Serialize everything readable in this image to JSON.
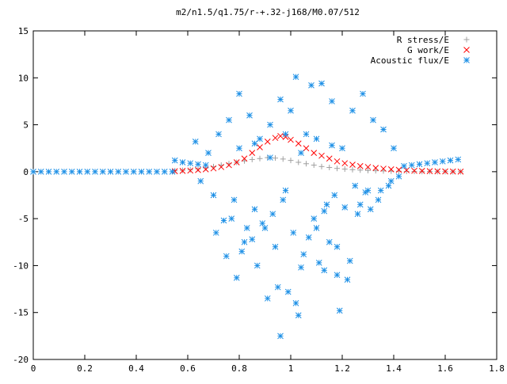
{
  "chart_data": {
    "type": "scatter",
    "title": "m2/n1.5/q1.75/r-+.32-j168/M0.07/512",
    "xlabel": "",
    "ylabel": "",
    "xlim": [
      0,
      1.8
    ],
    "ylim": [
      -20,
      15
    ],
    "x_ticks": [
      0,
      0.2,
      0.4,
      0.6,
      0.8,
      1,
      1.2,
      1.4,
      1.6,
      1.8
    ],
    "x_tick_labels": [
      "0",
      "0.2",
      "0.4",
      "0.6",
      "0.8",
      "1",
      "1.2",
      "1.4",
      "1.6",
      "1.8"
    ],
    "y_ticks": [
      -20,
      -15,
      -10,
      -5,
      0,
      5,
      10,
      15
    ],
    "y_tick_labels": [
      "-20",
      "-15",
      "-10",
      "-5",
      "0",
      "5",
      "10",
      "15"
    ],
    "grid": false,
    "legend_position": "top-right",
    "series": [
      {
        "name": "R stress/E",
        "marker": "plus",
        "color": "#a0a0a0",
        "x": [
          0.55,
          0.58,
          0.61,
          0.64,
          0.67,
          0.7,
          0.73,
          0.76,
          0.79,
          0.82,
          0.85,
          0.88,
          0.91,
          0.94,
          0.97,
          1.0,
          1.03,
          1.06,
          1.09,
          1.12,
          1.15,
          1.18,
          1.21,
          1.24,
          1.27,
          1.3,
          1.33,
          1.36,
          1.39,
          1.42,
          1.45,
          1.48,
          1.51,
          1.54,
          1.57,
          1.6,
          1.63,
          1.66
        ],
        "y": [
          0.1,
          0.15,
          0.2,
          0.3,
          0.4,
          0.55,
          0.7,
          0.85,
          1.0,
          1.15,
          1.3,
          1.4,
          1.5,
          1.45,
          1.35,
          1.2,
          1.0,
          0.85,
          0.7,
          0.55,
          0.45,
          0.35,
          0.28,
          0.22,
          0.17,
          0.13,
          0.1,
          0.08,
          0.06,
          0.05,
          0.04,
          0.03,
          0.02,
          0.02,
          0.01,
          0.01,
          0.0,
          0.0
        ]
      },
      {
        "name": "G work/E",
        "marker": "cross",
        "color": "#ff0000",
        "x": [
          0.55,
          0.58,
          0.61,
          0.64,
          0.67,
          0.7,
          0.73,
          0.76,
          0.79,
          0.82,
          0.85,
          0.88,
          0.91,
          0.94,
          0.96,
          0.98,
          1.0,
          1.03,
          1.06,
          1.09,
          1.12,
          1.15,
          1.18,
          1.21,
          1.24,
          1.27,
          1.3,
          1.33,
          1.36,
          1.39,
          1.42,
          1.45,
          1.48,
          1.51,
          1.54,
          1.57,
          1.6,
          1.63,
          1.66
        ],
        "y": [
          0.05,
          0.08,
          0.12,
          0.18,
          0.25,
          0.35,
          0.5,
          0.7,
          1.0,
          1.4,
          2.0,
          2.6,
          3.2,
          3.6,
          3.8,
          3.7,
          3.4,
          3.0,
          2.5,
          2.0,
          1.7,
          1.4,
          1.1,
          0.9,
          0.75,
          0.6,
          0.5,
          0.4,
          0.32,
          0.25,
          0.2,
          0.15,
          0.1,
          0.08,
          0.06,
          0.04,
          0.03,
          0.02,
          0.01
        ]
      },
      {
        "name": "Acoustic flux/E",
        "marker": "star",
        "color": "#1e90e6",
        "x": [
          0.0,
          0.03,
          0.06,
          0.09,
          0.12,
          0.15,
          0.18,
          0.21,
          0.24,
          0.27,
          0.3,
          0.33,
          0.36,
          0.39,
          0.42,
          0.45,
          0.48,
          0.51,
          0.54,
          0.55,
          0.58,
          0.61,
          0.64,
          0.67,
          1.44,
          1.47,
          1.5,
          1.53,
          1.56,
          1.59,
          1.62,
          1.65,
          0.63,
          0.65,
          0.68,
          0.7,
          0.72,
          0.74,
          0.76,
          0.78,
          0.8,
          0.82,
          0.84,
          0.86,
          0.88,
          0.9,
          0.92,
          0.94,
          0.96,
          0.98,
          1.0,
          1.02,
          1.04,
          1.06,
          1.08,
          1.1,
          1.12,
          1.14,
          1.16,
          1.18,
          1.2,
          1.22,
          1.24,
          1.26,
          1.28,
          1.3,
          1.32,
          1.34,
          1.36,
          1.38,
          1.4,
          1.42,
          0.71,
          0.75,
          0.79,
          0.83,
          0.87,
          0.91,
          0.95,
          0.99,
          1.03,
          1.07,
          1.11,
          1.15,
          1.19,
          1.23,
          1.27,
          1.31,
          1.35,
          1.39,
          0.77,
          0.81,
          0.85,
          0.89,
          0.93,
          0.97,
          1.01,
          1.05,
          1.09,
          1.13,
          1.17,
          1.21,
          1.25,
          1.29,
          0.8,
          0.86,
          0.92,
          0.98,
          1.04,
          1.1,
          1.16,
          0.96,
          1.02,
          1.13,
          1.18
        ],
        "y": [
          0.0,
          0.0,
          0.0,
          0.0,
          0.0,
          0.0,
          0.0,
          0.0,
          0.0,
          0.0,
          0.0,
          0.0,
          0.0,
          0.0,
          0.0,
          0.0,
          0.0,
          0.0,
          0.0,
          1.2,
          1.0,
          0.9,
          0.8,
          0.7,
          0.6,
          0.7,
          0.8,
          0.9,
          1.0,
          1.1,
          1.2,
          1.3,
          3.2,
          -1.0,
          2.0,
          -2.5,
          4.0,
          -5.2,
          5.5,
          -3.0,
          8.3,
          -7.5,
          6.0,
          -4.0,
          3.5,
          -6.0,
          5.0,
          -8.0,
          7.7,
          -2.0,
          6.5,
          10.1,
          -10.2,
          4.0,
          9.2,
          -6.0,
          9.4,
          -3.5,
          7.5,
          -8.0,
          2.5,
          -11.5,
          6.5,
          -4.5,
          8.3,
          -2.0,
          5.5,
          -3.0,
          4.5,
          -1.5,
          2.5,
          -0.5,
          -6.5,
          -9.0,
          -11.3,
          -6.0,
          -10.0,
          -13.5,
          -12.3,
          -12.8,
          -15.3,
          -7.0,
          -9.7,
          -7.5,
          -14.8,
          -9.5,
          -3.5,
          -4.0,
          -2.0,
          -1.0,
          -5.0,
          -8.5,
          -7.2,
          -5.5,
          -4.5,
          -3.0,
          -6.5,
          -8.8,
          -5.0,
          -4.2,
          -2.5,
          -3.8,
          -1.5,
          -2.2,
          2.5,
          3.0,
          1.5,
          4.0,
          2.0,
          3.5,
          2.8,
          -17.5,
          -14.0,
          -10.5,
          -11.0
        ]
      }
    ]
  }
}
